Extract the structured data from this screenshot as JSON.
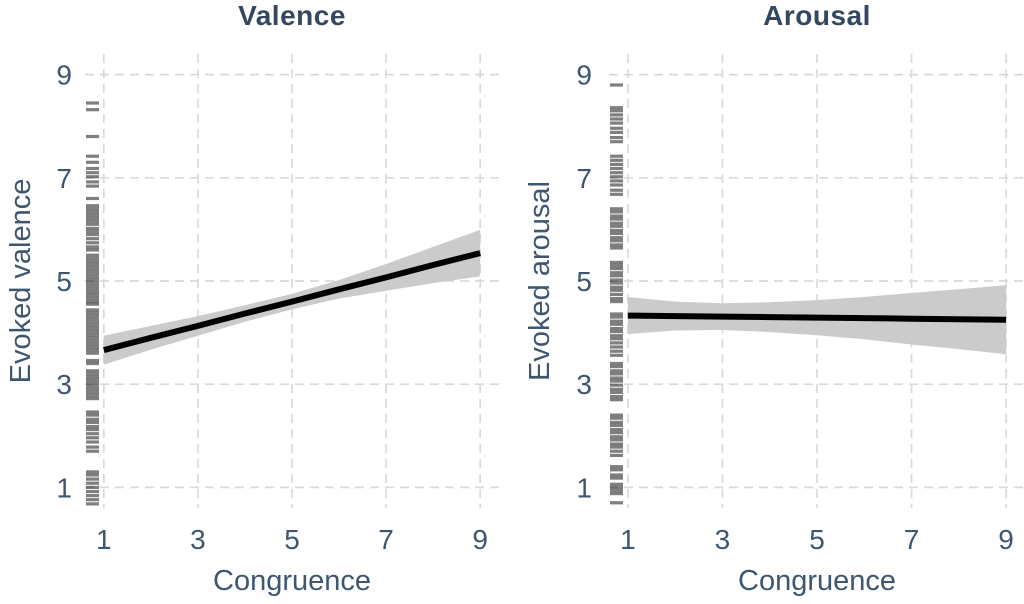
{
  "figure": {
    "background": "#ffffff",
    "title_color": "#33485e",
    "axis_text_color": "#3e5670",
    "grid_color": "#dadada",
    "band_color": "#cbcbcb",
    "line_color": "#000000",
    "rug_color": "#000000"
  },
  "chart_data": [
    {
      "type": "line",
      "title": "Valence",
      "xlabel": "Congruence",
      "ylabel": "Evoked valence",
      "x_ticks": [
        1,
        3,
        5,
        7,
        9
      ],
      "y_ticks": [
        9,
        7,
        5,
        3,
        1
      ],
      "xlim": [
        0.6,
        9.4
      ],
      "ylim": [
        0.6,
        9.4
      ],
      "grid": "dashed",
      "legend": "none",
      "series": [
        {
          "name": "linear-fit",
          "x": [
            1,
            2,
            3,
            4,
            5,
            6,
            7,
            8,
            9
          ],
          "y": [
            3.66,
            3.9,
            4.13,
            4.37,
            4.6,
            4.84,
            5.07,
            5.31,
            5.54
          ]
        }
      ],
      "ci_band": {
        "x": [
          1,
          2,
          3,
          4,
          5,
          6,
          7,
          8,
          9
        ],
        "upper": [
          3.94,
          4.13,
          4.32,
          4.53,
          4.75,
          5.02,
          5.33,
          5.66,
          5.99
        ],
        "lower": [
          3.38,
          3.67,
          3.94,
          4.21,
          4.45,
          4.66,
          4.81,
          4.96,
          5.09
        ]
      },
      "rug_side": "left",
      "rug_values": [
        8.45,
        8.32,
        7.8,
        7.42,
        7.3,
        7.18,
        7.1,
        7.02,
        6.92,
        6.84,
        6.6,
        6.46,
        6.4,
        6.34,
        6.28,
        6.22,
        6.16,
        6.1,
        6.02,
        5.96,
        5.9,
        5.82,
        5.74,
        5.66,
        5.6,
        5.5,
        5.44,
        5.38,
        5.32,
        5.26,
        5.2,
        5.14,
        5.08,
        5.02,
        4.96,
        4.9,
        4.84,
        4.78,
        4.72,
        4.66,
        4.6,
        4.55,
        4.44,
        4.38,
        4.32,
        4.26,
        4.2,
        4.14,
        4.08,
        4.02,
        3.96,
        3.9,
        3.84,
        3.78,
        3.72,
        3.66,
        3.6,
        3.46,
        3.4,
        3.26,
        3.2,
        3.14,
        3.08,
        3.02,
        2.96,
        2.9,
        2.84,
        2.78,
        2.72,
        2.46,
        2.4,
        2.32,
        2.26,
        2.18,
        2.12,
        2.04,
        1.96,
        1.88,
        1.78,
        1.7,
        1.3,
        1.24,
        1.16,
        1.08,
        1.0,
        0.92,
        0.84,
        0.76,
        0.68
      ]
    },
    {
      "type": "line",
      "title": "Arousal",
      "xlabel": "Congruence",
      "ylabel": "Evoked arousal",
      "x_ticks": [
        1,
        3,
        5,
        7,
        9
      ],
      "y_ticks": [
        9,
        7,
        5,
        3,
        1
      ],
      "xlim": [
        0.6,
        9.4
      ],
      "ylim": [
        0.6,
        9.4
      ],
      "grid": "dashed",
      "legend": "none",
      "series": [
        {
          "name": "linear-fit",
          "x": [
            1,
            2,
            3,
            4,
            5,
            6,
            7,
            8,
            9
          ],
          "y": [
            4.33,
            4.32,
            4.31,
            4.3,
            4.29,
            4.28,
            4.27,
            4.26,
            4.25
          ]
        }
      ],
      "ci_band": {
        "x": [
          1,
          2,
          3,
          4,
          5,
          6,
          7,
          8,
          9
        ],
        "upper": [
          4.69,
          4.6,
          4.57,
          4.59,
          4.63,
          4.69,
          4.77,
          4.84,
          4.92
        ],
        "lower": [
          3.97,
          4.04,
          4.05,
          4.01,
          3.95,
          3.87,
          3.77,
          3.68,
          3.58
        ]
      },
      "rug_side": "left",
      "rug_values": [
        8.8,
        8.36,
        8.3,
        8.22,
        8.14,
        8.06,
        7.96,
        7.88,
        7.78,
        7.7,
        7.42,
        7.34,
        7.26,
        7.18,
        7.1,
        7.02,
        6.94,
        6.86,
        6.76,
        6.68,
        6.4,
        6.34,
        6.26,
        6.2,
        6.12,
        6.06,
        5.98,
        5.92,
        5.84,
        5.78,
        5.7,
        5.64,
        5.36,
        5.3,
        5.24,
        5.16,
        5.1,
        5.02,
        4.96,
        4.88,
        4.82,
        4.74,
        4.66,
        4.6,
        4.36,
        4.3,
        4.22,
        4.16,
        4.08,
        4.02,
        3.94,
        3.88,
        3.8,
        3.72,
        3.64,
        3.56,
        3.4,
        3.34,
        3.26,
        3.2,
        3.12,
        3.06,
        2.98,
        2.9,
        2.84,
        2.76,
        2.7,
        2.4,
        2.34,
        2.26,
        2.2,
        2.12,
        2.06,
        1.98,
        1.92,
        1.84,
        1.78,
        1.7,
        1.62,
        1.4,
        1.34,
        1.24,
        1.18,
        1.06,
        1.0,
        0.94,
        0.88,
        0.7
      ]
    }
  ]
}
